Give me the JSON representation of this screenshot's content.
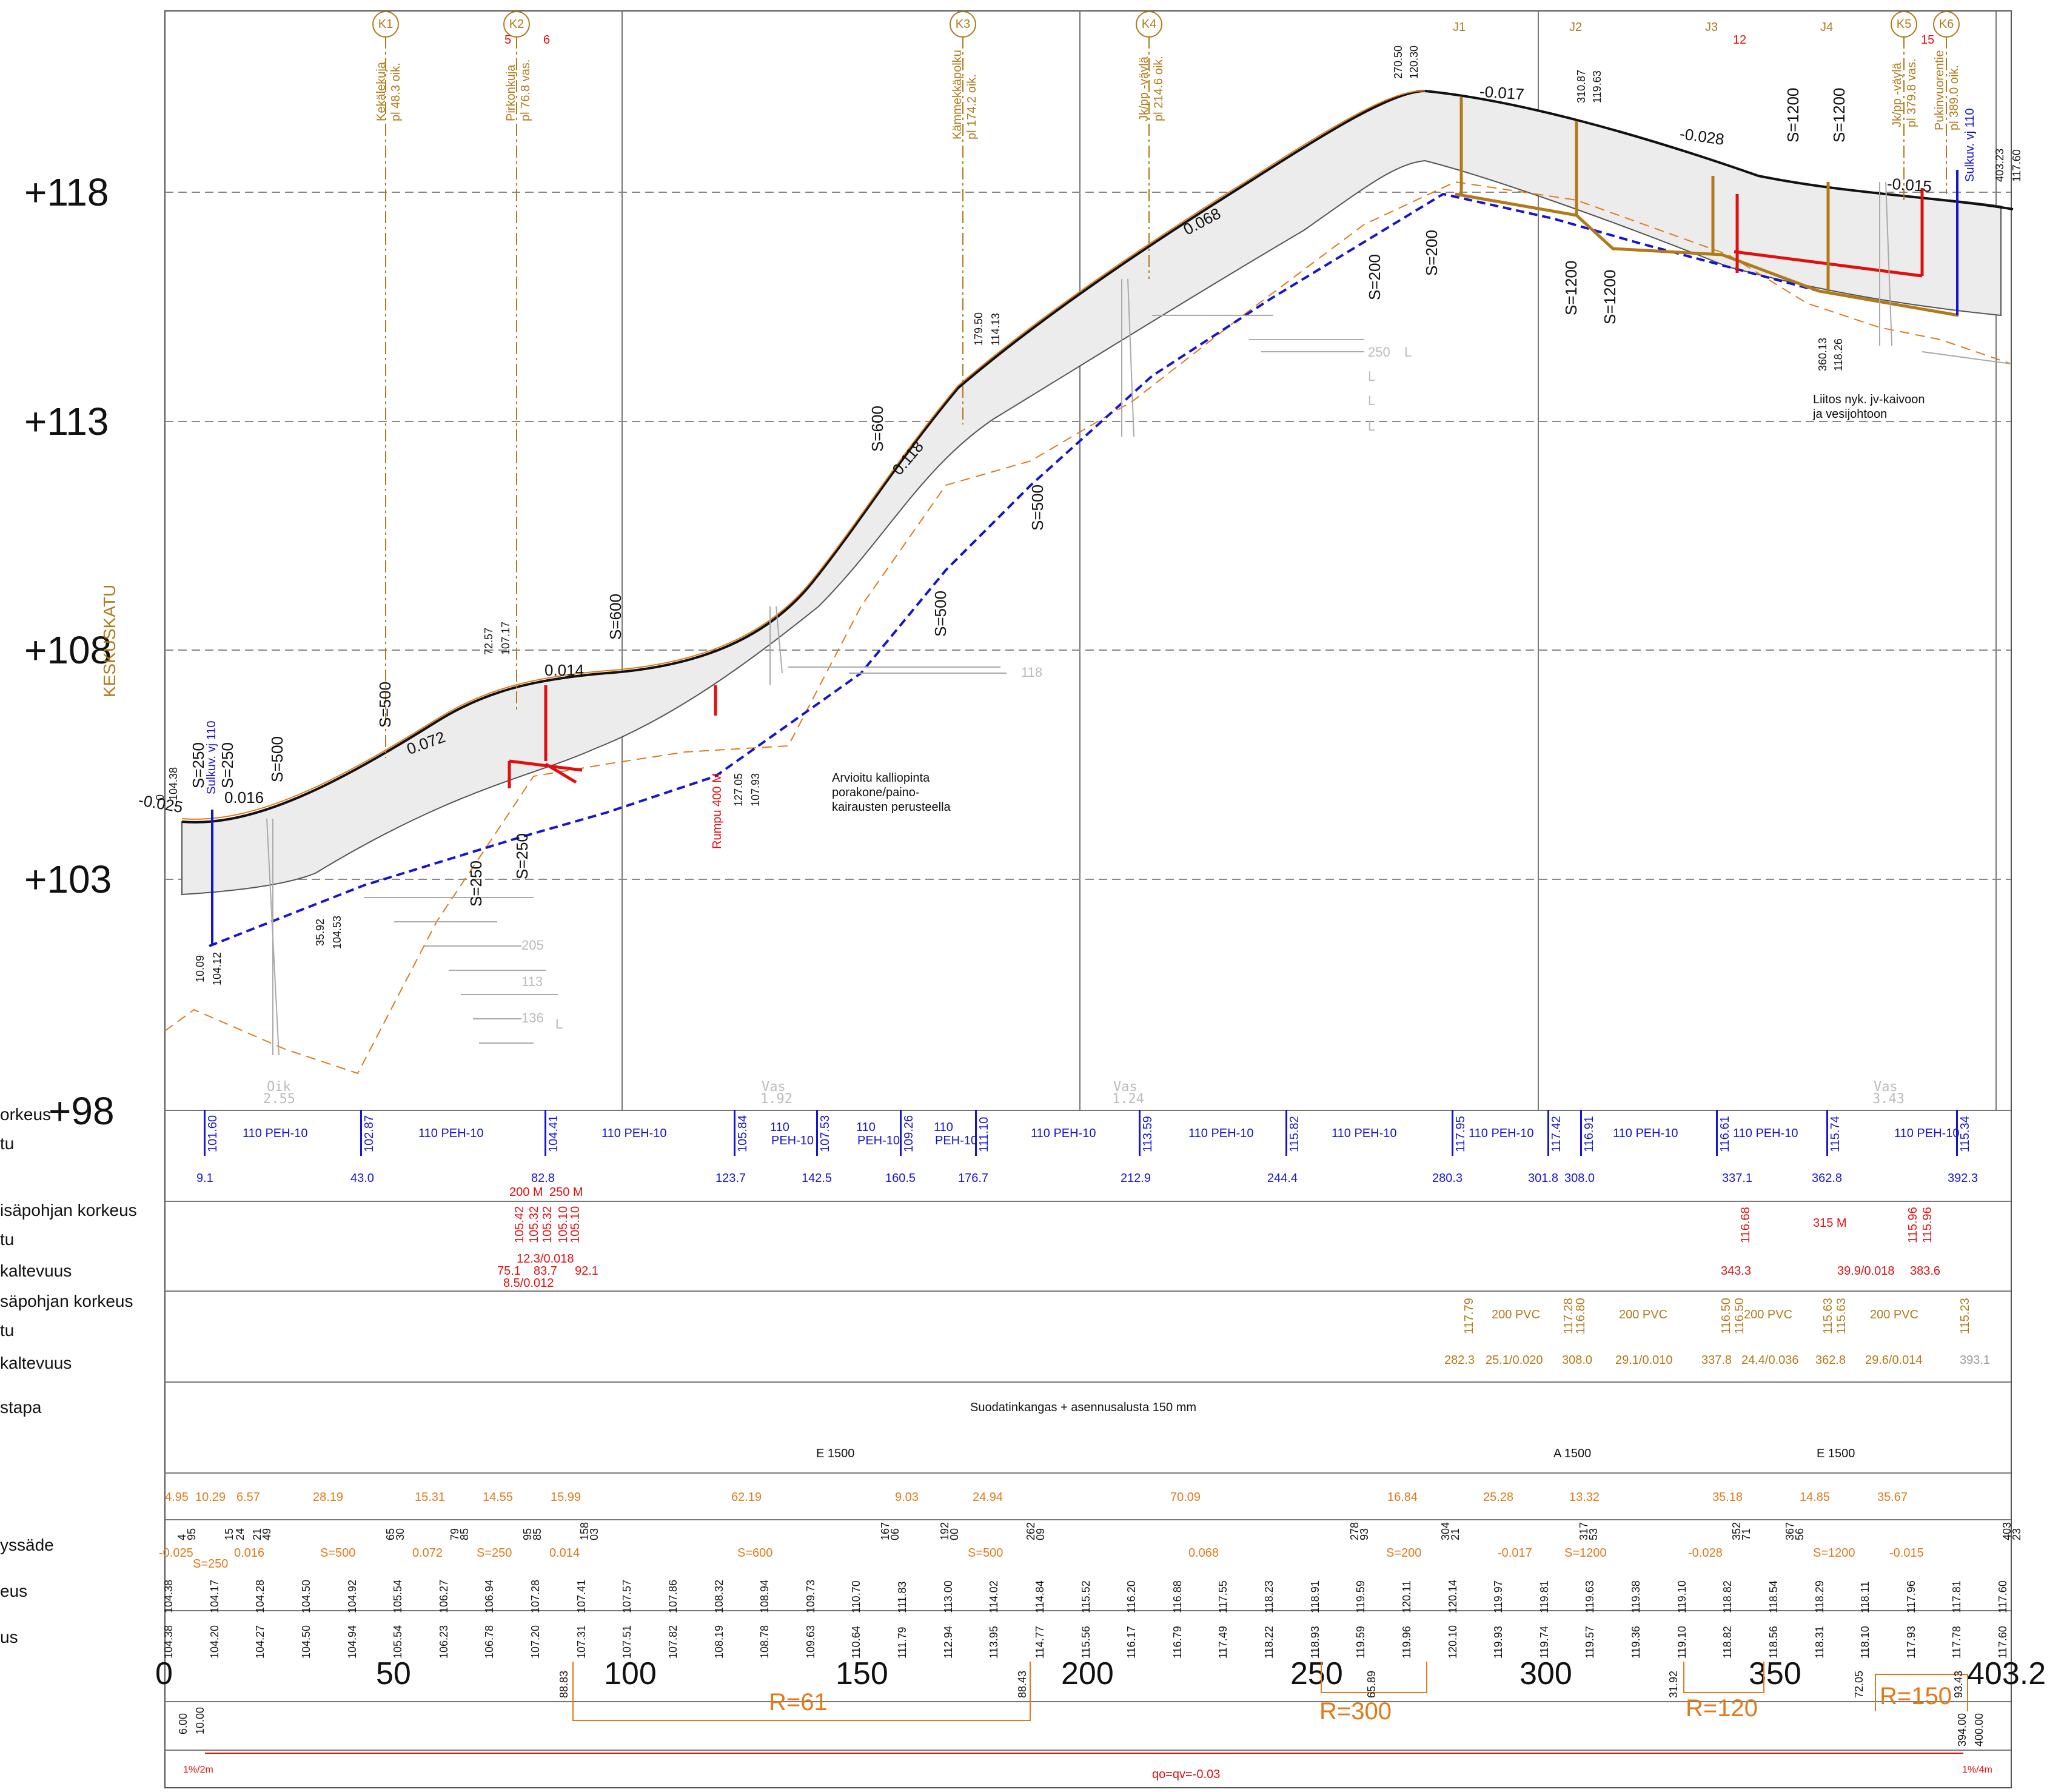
{
  "elevation_labels": [
    "+118",
    "+113",
    "+108",
    "+103",
    "+98"
  ],
  "station_labels": [
    "0",
    "50",
    "100",
    "150",
    "200",
    "250",
    "300",
    "350",
    "403.2"
  ],
  "street_name": "KESKUSKATU",
  "left_row_labels": [
    "orkeus",
    "tu",
    "isäpohjan korkeus",
    "tu",
    "kaltevuus",
    "säpohjan korkeus",
    "tu",
    "kaltevuus",
    "stapa",
    "yssäde",
    "eus",
    "us"
  ],
  "markers": [
    {
      "id": "K1",
      "text": "Kekälekuja",
      "sub": "pl 48.3 oik."
    },
    {
      "id": "K2",
      "text": "Pirkonkuja",
      "sub": "pl 76.8 vas."
    },
    {
      "id": "K3",
      "text": "Kämmekkäpolku",
      "sub": "pl 174.2 oik."
    },
    {
      "id": "K4",
      "text": "Jk/pp -väylä",
      "sub": "pl 214.6 oik."
    },
    {
      "id": "K5",
      "text": "Jk/pp -väylä",
      "sub": "pl 379.8 vas."
    },
    {
      "id": "K6",
      "text": "Pukinvuorentie",
      "sub": "pl 389.0 oik."
    }
  ],
  "nodes": [
    "J1",
    "J2",
    "J3",
    "J4"
  ],
  "red_numbers": [
    "5",
    "6",
    "12",
    "15"
  ],
  "profile_values": {
    "slopes": [
      "-0.025",
      "0.016",
      "0.072",
      "0.014",
      "0.118",
      "0.068",
      "-0.017",
      "-0.028",
      "-0.015"
    ],
    "curves": [
      "S=250",
      "S=250",
      "S=500",
      "S=500",
      "S=250",
      "S=250",
      "S=600",
      "S=600",
      "S=500",
      "S=500",
      "S=200",
      "S=200",
      "S=1200",
      "S=1200",
      "S=1200",
      "S=1200"
    ],
    "pairs": [
      [
        "0",
        "104.38"
      ],
      [
        "72.57",
        "107.17"
      ],
      [
        "127.05",
        "107.93"
      ],
      [
        "179.50",
        "114.13"
      ],
      [
        "270.50",
        "120.30"
      ],
      [
        "310.87",
        "119.63"
      ],
      [
        "360.13",
        "118.26"
      ],
      [
        "403.23",
        "117.60"
      ],
      [
        "10.09",
        "104.12"
      ],
      [
        "35.92",
        "104.53"
      ]
    ]
  },
  "annotations": {
    "bedrock": [
      "Arvioitu kalliopinta",
      "porakone/paino-",
      "kairausten perusteella"
    ],
    "connection": [
      "Liitos nyk. jv-kaivoon",
      "ja vesijohtoon"
    ],
    "culvert": "Rumpu 400 M",
    "valve_left": "Sulkuv. vj 110",
    "valve_right": "Sulkuv. vj 110"
  },
  "soundings": {
    "labels": [
      "205",
      "113",
      "136",
      "250",
      "118"
    ],
    "letters": [
      "L",
      "L",
      "L",
      "L",
      "L"
    ],
    "bottom": [
      [
        "Oik",
        "2.55"
      ],
      [
        "Vas",
        "1.92"
      ],
      [
        "Vas",
        "1.24"
      ],
      [
        "Vas",
        "3.43"
      ]
    ]
  },
  "water_row": {
    "levels": [
      "101.60",
      "102.87",
      "104.41",
      "105.84",
      "107.53",
      "109.26",
      "111.10",
      "113.59",
      "115.82",
      "117.95",
      "117.42",
      "116.91",
      "116.61",
      "115.74",
      "115.34"
    ],
    "pipes": [
      "110 PEH-10",
      "110 PEH-10",
      "110 PEH-10",
      "110",
      "PEH-10",
      "110",
      "PEH-10",
      "110",
      "PEH-10",
      "110 PEH-10",
      "110 PEH-10",
      "110 PEH-10",
      "110 PEH-10",
      "110 PEH-10",
      "110 PEH-10",
      "110 PEH-10"
    ],
    "stations": [
      "9.1",
      "43.0",
      "82.8",
      "123.7",
      "142.5",
      "160.5",
      "176.7",
      "212.9",
      "244.4",
      "280.3",
      "301.8",
      "308.0",
      "337.1",
      "362.8",
      "392.3"
    ]
  },
  "storm_row": {
    "pipe_top": [
      "200 M",
      "250 M"
    ],
    "levels": [
      "105.42",
      "105.32",
      "105.32",
      "105.10",
      "105.10",
      "116.68",
      "115.96",
      "115.96"
    ],
    "pipe_right": "315 M",
    "slope": [
      "12.3/0.018",
      "75.1",
      "83.7",
      "92.1",
      "8.5/0.012",
      "343.3",
      "39.9/0.018",
      "383.6"
    ]
  },
  "sewer_row": {
    "levels": [
      "117.79",
      "117.28",
      "116.80",
      "116.50",
      "116.50",
      "115.63",
      "115.63",
      "115.23"
    ],
    "pipes": [
      "200 PVC",
      "200 PVC",
      "200 PVC",
      "200 PVC"
    ],
    "slope": [
      "282.3",
      "25.1/0.020",
      "308.0",
      "29.1/0.010",
      "337.8",
      "24.4/0.036",
      "362.8",
      "29.6/0.014",
      "393.1"
    ]
  },
  "install_method": "Suodatinkangas + asennusalusta 150 mm",
  "pipe_class": [
    "E 1500",
    "A 1500",
    "E 1500"
  ],
  "curve_table": {
    "lengths": [
      "4.95",
      "10.29",
      "6.57",
      "28.19",
      "15.31",
      "14.55",
      "15.99",
      "62.19",
      "9.03",
      "24.94",
      "70.09",
      "16.84",
      "25.28",
      "13.32",
      "35.18",
      "14.85",
      "35.67"
    ],
    "station_nums": [
      "4",
      "95",
      "15",
      "24",
      "21",
      "49",
      "65",
      "30",
      "79",
      "85",
      "95",
      "85",
      "158",
      "03",
      "167",
      "06",
      "192",
      "00",
      "262",
      "09",
      "278",
      "93",
      "304",
      "21",
      "317",
      "53",
      "352",
      "71",
      "367",
      "56",
      "403",
      "23"
    ],
    "vals": [
      "-0.025",
      "S=250",
      "0.016",
      "S=500",
      "0.072",
      "S=250",
      "0.014",
      "S=600",
      "S=500",
      "0.068",
      "S=200",
      "-0.017",
      "S=1200",
      "-0.028",
      "S=1200",
      "-0.015"
    ]
  },
  "design_levels": [
    "104.38",
    "104.17",
    "104.28",
    "104.50",
    "104.92",
    "105.54",
    "106.27",
    "106.94",
    "107.28",
    "107.41",
    "107.57",
    "107.86",
    "108.32",
    "108.94",
    "109.73",
    "110.70",
    "111.83",
    "113.00",
    "114.02",
    "114.84",
    "115.52",
    "116.20",
    "116.88",
    "117.55",
    "118.23",
    "118.91",
    "119.59",
    "120.11",
    "120.14",
    "119.97",
    "119.81",
    "119.63",
    "119.38",
    "119.10",
    "118.82",
    "118.54",
    "118.29",
    "118.11",
    "117.96",
    "117.81",
    "117.60"
  ],
  "ground_levels": [
    "104.38",
    "104.20",
    "104.27",
    "104.50",
    "104.94",
    "105.54",
    "106.23",
    "106.78",
    "107.20",
    "107.31",
    "107.51",
    "107.82",
    "108.19",
    "108.78",
    "109.63",
    "110.64",
    "111.79",
    "112.94",
    "113.95",
    "114.77",
    "115.56",
    "116.17",
    "116.79",
    "117.49",
    "118.22",
    "118.93",
    "119.59",
    "119.96",
    "120.10",
    "119.93",
    "119.74",
    "119.57",
    "119.36",
    "119.10",
    "118.82",
    "118.56",
    "118.31",
    "118.10",
    "117.93",
    "117.78",
    "117.60"
  ],
  "horizontal": {
    "radii": [
      "R=61",
      "R=300",
      "R=120",
      "R=150"
    ],
    "stations": [
      "88.83",
      "88.43",
      "65.89",
      "31.92",
      "72.05",
      "93.43",
      "6.00",
      "10.00",
      "394.00",
      "400.00"
    ],
    "crossfall": [
      "1%/2m",
      "qo=qv=-0.03",
      "1%/4m"
    ]
  }
}
